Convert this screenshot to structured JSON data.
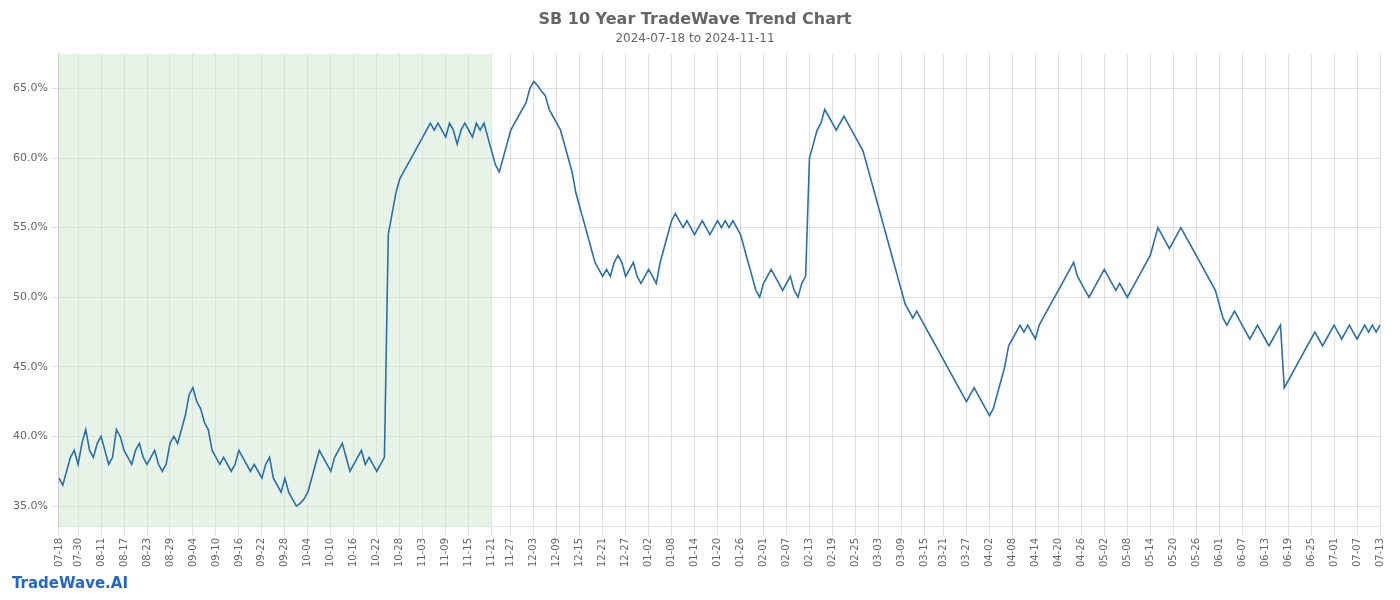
{
  "chart_data": {
    "type": "line",
    "title": "SB 10 Year TradeWave Trend Chart",
    "subtitle": "2024-07-18 to 2024-11-11",
    "annotations": [
      "TradeWave.AI"
    ],
    "categories": [
      "07-18",
      null,
      null,
      null,
      null,
      "07-30",
      null,
      null,
      null,
      null,
      null,
      "08-11",
      null,
      null,
      null,
      null,
      null,
      "08-17",
      null,
      null,
      null,
      null,
      null,
      "08-23",
      null,
      null,
      null,
      null,
      null,
      "08-29",
      null,
      null,
      null,
      null,
      null,
      "09-04",
      null,
      null,
      null,
      null,
      null,
      "09-10",
      null,
      null,
      null,
      null,
      null,
      "09-16",
      null,
      null,
      null,
      null,
      null,
      "09-22",
      null,
      null,
      null,
      null,
      null,
      "09-28",
      null,
      null,
      null,
      null,
      null,
      "10-04",
      null,
      null,
      null,
      null,
      null,
      "10-10",
      null,
      null,
      null,
      null,
      null,
      "10-16",
      null,
      null,
      null,
      null,
      null,
      "10-22",
      null,
      null,
      null,
      null,
      null,
      "10-28",
      null,
      null,
      null,
      null,
      null,
      "11-03",
      null,
      null,
      null,
      null,
      null,
      "11-09",
      null,
      null,
      null,
      null,
      null,
      "11-15",
      null,
      null,
      null,
      null,
      null,
      "11-21",
      null,
      null,
      null,
      null,
      "11-27",
      null,
      null,
      null,
      null,
      null,
      "12-03",
      null,
      null,
      null,
      null,
      null,
      "12-09",
      null,
      null,
      null,
      null,
      null,
      "12-15",
      null,
      null,
      null,
      null,
      null,
      "12-21",
      null,
      null,
      null,
      null,
      null,
      "12-27",
      null,
      null,
      null,
      null,
      null,
      "01-02",
      null,
      null,
      null,
      null,
      null,
      "01-08",
      null,
      null,
      null,
      null,
      null,
      "01-14",
      null,
      null,
      null,
      null,
      null,
      "01-20",
      null,
      null,
      null,
      null,
      null,
      "01-26",
      null,
      null,
      null,
      null,
      null,
      "02-01",
      null,
      null,
      null,
      null,
      null,
      "02-07",
      null,
      null,
      null,
      null,
      null,
      "02-13",
      null,
      null,
      null,
      null,
      null,
      "02-19",
      null,
      null,
      null,
      null,
      null,
      "02-25",
      null,
      null,
      null,
      null,
      null,
      "03-03",
      null,
      null,
      null,
      null,
      null,
      "03-09",
      null,
      null,
      null,
      null,
      null,
      "03-15",
      null,
      null,
      null,
      null,
      "03-21",
      null,
      null,
      null,
      null,
      null,
      "03-27",
      null,
      null,
      null,
      null,
      null,
      "04-02",
      null,
      null,
      null,
      null,
      null,
      "04-08",
      null,
      null,
      null,
      null,
      null,
      "04-14",
      null,
      null,
      null,
      null,
      null,
      "04-20",
      null,
      null,
      null,
      null,
      null,
      "04-26",
      null,
      null,
      null,
      null,
      null,
      "05-02",
      null,
      null,
      null,
      null,
      null,
      "05-08",
      null,
      null,
      null,
      null,
      null,
      "05-14",
      null,
      null,
      null,
      null,
      null,
      "05-20",
      null,
      null,
      null,
      null,
      null,
      "05-26",
      null,
      null,
      null,
      null,
      null,
      "06-01",
      null,
      null,
      null,
      null,
      null,
      "06-07",
      null,
      null,
      null,
      null,
      null,
      "06-13",
      null,
      null,
      null,
      null,
      null,
      "06-19",
      null,
      null,
      null,
      null,
      null,
      "06-25",
      null,
      null,
      null,
      null,
      null,
      "07-01",
      null,
      null,
      null,
      null,
      null,
      "07-07",
      null,
      null,
      null,
      null,
      null,
      "07-13"
    ],
    "values": [
      37.0,
      36.5,
      37.5,
      38.5,
      39.0,
      38.0,
      39.5,
      40.5,
      39.0,
      38.5,
      39.5,
      40.0,
      39.0,
      38.0,
      38.5,
      40.5,
      40.0,
      39.0,
      38.5,
      38.0,
      39.0,
      39.5,
      38.5,
      38.0,
      38.5,
      39.0,
      38.0,
      37.5,
      38.0,
      39.5,
      40.0,
      39.5,
      40.5,
      41.5,
      43.0,
      43.5,
      42.5,
      42.0,
      41.0,
      40.5,
      39.0,
      38.5,
      38.0,
      38.5,
      38.0,
      37.5,
      38.0,
      39.0,
      38.5,
      38.0,
      37.5,
      38.0,
      37.5,
      37.0,
      38.0,
      38.5,
      37.0,
      36.5,
      36.0,
      37.0,
      36.0,
      35.5,
      35.0,
      35.2,
      35.5,
      36.0,
      37.0,
      38.0,
      39.0,
      38.5,
      38.0,
      37.5,
      38.5,
      39.0,
      39.5,
      38.5,
      37.5,
      38.0,
      38.5,
      39.0,
      38.0,
      38.5,
      38.0,
      37.5,
      38.0,
      38.5,
      54.5,
      56.0,
      57.5,
      58.5,
      59.0,
      59.5,
      60.0,
      60.5,
      61.0,
      61.5,
      62.0,
      62.5,
      62.0,
      62.5,
      62.0,
      61.5,
      62.5,
      62.0,
      61.0,
      62.0,
      62.5,
      62.0,
      61.5,
      62.5,
      62.0,
      62.5,
      61.5,
      60.5,
      59.5,
      59.0,
      60.0,
      61.0,
      62.0,
      62.5,
      63.0,
      63.5,
      64.0,
      65.0,
      65.5,
      65.2,
      64.8,
      64.5,
      63.5,
      63.0,
      62.5,
      62.0,
      61.0,
      60.0,
      59.0,
      57.5,
      56.5,
      55.5,
      54.5,
      53.5,
      52.5,
      52.0,
      51.5,
      52.0,
      51.5,
      52.5,
      53.0,
      52.5,
      51.5,
      52.0,
      52.5,
      51.5,
      51.0,
      51.5,
      52.0,
      51.5,
      51.0,
      52.5,
      53.5,
      54.5,
      55.5,
      56.0,
      55.5,
      55.0,
      55.5,
      55.0,
      54.5,
      55.0,
      55.5,
      55.0,
      54.5,
      55.0,
      55.5,
      55.0,
      55.5,
      55.0,
      55.5,
      55.0,
      54.5,
      53.5,
      52.5,
      51.5,
      50.5,
      50.0,
      51.0,
      51.5,
      52.0,
      51.5,
      51.0,
      50.5,
      51.0,
      51.5,
      50.5,
      50.0,
      51.0,
      51.5,
      60.0,
      61.0,
      62.0,
      62.5,
      63.5,
      63.0,
      62.5,
      62.0,
      62.5,
      63.0,
      62.5,
      62.0,
      61.5,
      61.0,
      60.5,
      59.5,
      58.5,
      57.5,
      56.5,
      55.5,
      54.5,
      53.5,
      52.5,
      51.5,
      50.5,
      49.5,
      49.0,
      48.5,
      49.0,
      48.5,
      48.0,
      47.5,
      47.0,
      46.5,
      46.0,
      45.5,
      45.0,
      44.5,
      44.0,
      43.5,
      43.0,
      42.5,
      43.0,
      43.5,
      43.0,
      42.5,
      42.0,
      41.5,
      42.0,
      43.0,
      44.0,
      45.0,
      46.5,
      47.0,
      47.5,
      48.0,
      47.5,
      48.0,
      47.5,
      47.0,
      48.0,
      48.5,
      49.0,
      49.5,
      50.0,
      50.5,
      51.0,
      51.5,
      52.0,
      52.5,
      51.5,
      51.0,
      50.5,
      50.0,
      50.5,
      51.0,
      51.5,
      52.0,
      51.5,
      51.0,
      50.5,
      51.0,
      50.5,
      50.0,
      50.5,
      51.0,
      51.5,
      52.0,
      52.5,
      53.0,
      54.0,
      55.0,
      54.5,
      54.0,
      53.5,
      54.0,
      54.5,
      55.0,
      54.5,
      54.0,
      53.5,
      53.0,
      52.5,
      52.0,
      51.5,
      51.0,
      50.5,
      49.5,
      48.5,
      48.0,
      48.5,
      49.0,
      48.5,
      48.0,
      47.5,
      47.0,
      47.5,
      48.0,
      47.5,
      47.0,
      46.5,
      47.0,
      47.5,
      48.0,
      43.5,
      44.0,
      44.5,
      45.0,
      45.5,
      46.0,
      46.5,
      47.0,
      47.5,
      47.0,
      46.5,
      47.0,
      47.5,
      48.0,
      47.5,
      47.0,
      47.5,
      48.0,
      47.5,
      47.0,
      47.5,
      48.0,
      47.5,
      48.0,
      47.5,
      48.0
    ],
    "color": "#2a6faa",
    "ylim": [
      33.5,
      67.5
    ],
    "yticks": [
      {
        "value": 35.0,
        "label": "35.0%"
      },
      {
        "value": 40.0,
        "label": "40.0%"
      },
      {
        "value": 45.0,
        "label": "45.0%"
      },
      {
        "value": 50.0,
        "label": "50.0%"
      },
      {
        "value": 55.0,
        "label": "55.0%"
      },
      {
        "value": 60.0,
        "label": "60.0%"
      },
      {
        "value": 65.0,
        "label": "65.0%"
      }
    ],
    "grid": true,
    "shaded_range": {
      "from": "07-18",
      "to": "11-21",
      "color": "#d4ead4"
    }
  }
}
